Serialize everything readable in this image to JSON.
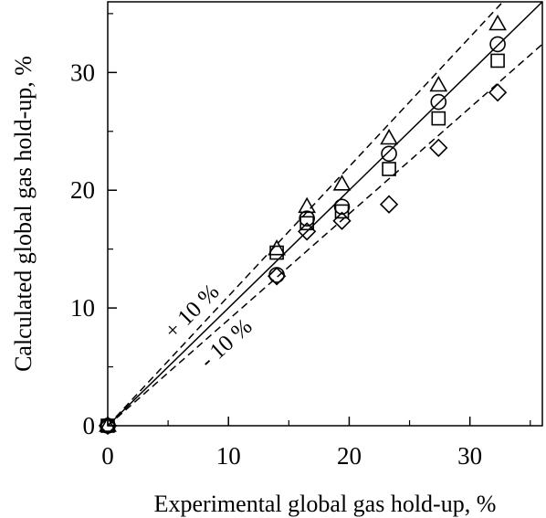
{
  "chart_data": {
    "type": "scatter",
    "title": "",
    "xlabel": "Experimental global gas hold-up, %",
    "ylabel": "Calculated global gas hold-up, %",
    "xlim": [
      0,
      36
    ],
    "ylim": [
      0,
      36
    ],
    "xticks": [
      0,
      10,
      20,
      30
    ],
    "yticks": [
      0,
      10,
      20,
      30
    ],
    "grid": false,
    "legend": "none",
    "annotations": [
      "+ 10 %",
      "- 10 %"
    ],
    "reference_lines": [
      {
        "style": "solid",
        "slope": 1.0
      },
      {
        "style": "dashed",
        "slope": 1.1
      },
      {
        "style": "dashed",
        "slope": 0.9
      }
    ],
    "series": [
      {
        "marker": "triangle",
        "x": [
          0,
          14.0,
          16.5,
          19.4,
          23.3,
          27.4,
          32.3
        ],
        "y": [
          0,
          15.0,
          18.6,
          20.5,
          24.4,
          28.9,
          34.1
        ]
      },
      {
        "marker": "circle",
        "x": [
          0,
          14.0,
          16.5,
          19.4,
          23.3,
          27.4,
          32.3
        ],
        "y": [
          0,
          12.8,
          17.6,
          18.6,
          23.1,
          27.5,
          32.4
        ]
      },
      {
        "marker": "square",
        "x": [
          0,
          14.0,
          16.5,
          19.4,
          23.3,
          27.4,
          32.3
        ],
        "y": [
          0,
          14.7,
          17.2,
          18.2,
          21.8,
          26.1,
          31.0
        ]
      },
      {
        "marker": "diamond",
        "x": [
          0,
          14.0,
          16.5,
          19.4,
          23.3,
          27.4,
          32.3
        ],
        "y": [
          0,
          12.7,
          16.5,
          17.4,
          18.8,
          23.6,
          28.3
        ]
      }
    ]
  }
}
